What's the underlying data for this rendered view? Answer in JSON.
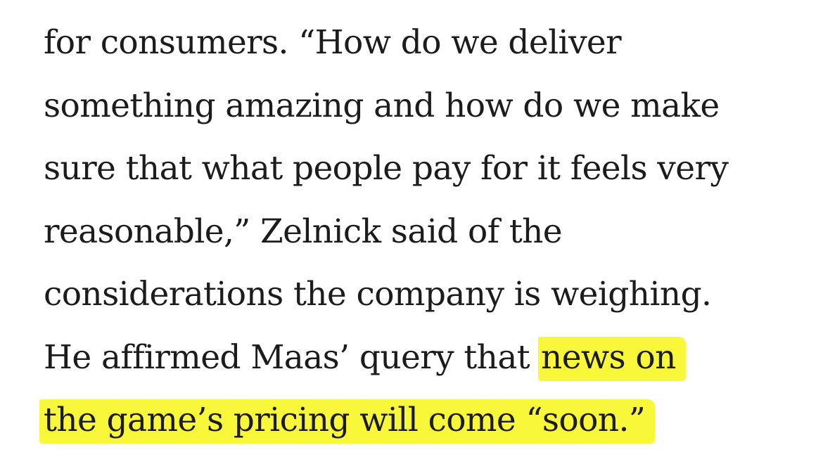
{
  "paragraph": {
    "lines": [
      "for consumers. “How do we deliver",
      "something amazing and how do we make",
      "sure that what people pay for it feels very",
      "reasonable,” Zelnick said of the",
      "considerations the company is weighing.",
      "He affirmed Maas’ query that"
    ],
    "highlight": [
      "news on",
      "the game’s pricing will come “soon.”"
    ]
  }
}
